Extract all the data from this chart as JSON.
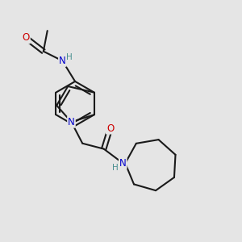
{
  "background_color": "#e5e5e5",
  "bond_color": "#1a1a1a",
  "bond_width": 1.5,
  "atom_colors": {
    "N": "#0000cc",
    "O": "#cc0000",
    "H_label": "#4a9090",
    "C": "#1a1a1a"
  },
  "font_size_atom": 8.5,
  "font_size_H": 7.5,
  "dbo": 0.032
}
